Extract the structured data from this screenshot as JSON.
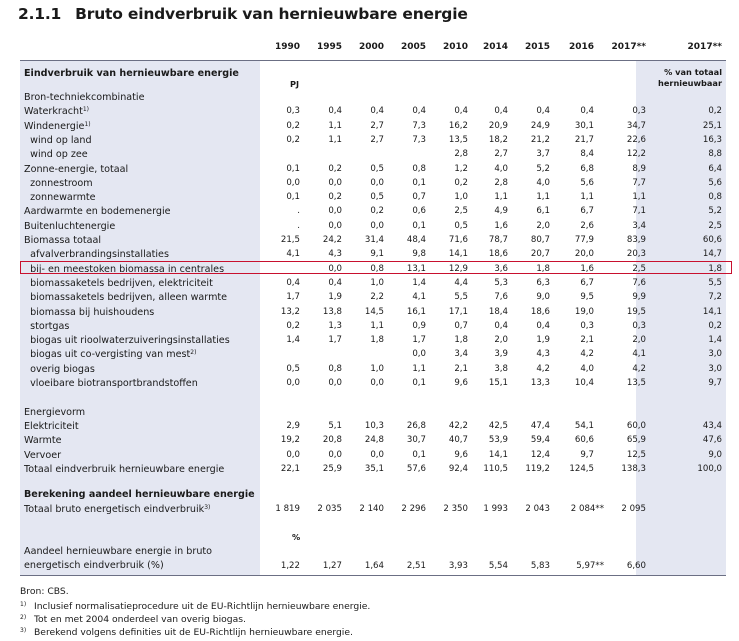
{
  "title": {
    "number": "2.1.1",
    "text": "Bruto eindverbruik van hernieuwbare energie"
  },
  "years": [
    "1990",
    "1995",
    "2000",
    "2005",
    "2010",
    "2014",
    "2015",
    "2016",
    "2017**",
    "2017**"
  ],
  "section1": {
    "heading": "Eindverbruik van hernieuwbare energie",
    "unit_pj": "PJ",
    "unit_pct": "% van totaal\nhernieuwbaar"
  },
  "rows": [
    {
      "label": "Bron-techniekcombinatie",
      "sup": "",
      "bold": false,
      "values": [
        "",
        "",
        "",
        "",
        "",
        "",
        "",
        "",
        "",
        ""
      ]
    },
    {
      "label": "Waterkracht",
      "sup": "1)",
      "bold": false,
      "values": [
        "0,3",
        "0,4",
        "0,4",
        "0,4",
        "0,4",
        "0,4",
        "0,4",
        "0,4",
        "0,3",
        "0,2"
      ]
    },
    {
      "label": "Windenergie",
      "sup": "1)",
      "bold": false,
      "values": [
        "0,2",
        "1,1",
        "2,7",
        "7,3",
        "16,2",
        "20,9",
        "24,9",
        "30,1",
        "34,7",
        "25,1"
      ]
    },
    {
      "label": "  wind op land",
      "sup": "",
      "bold": false,
      "values": [
        "0,2",
        "1,1",
        "2,7",
        "7,3",
        "13,5",
        "18,2",
        "21,2",
        "21,7",
        "22,6",
        "16,3"
      ]
    },
    {
      "label": "  wind op zee",
      "sup": "",
      "bold": false,
      "values": [
        "",
        "",
        "",
        "",
        "2,8",
        "2,7",
        "3,7",
        "8,4",
        "12,2",
        "8,8"
      ]
    },
    {
      "label": "Zonne-energie, totaal",
      "sup": "",
      "bold": false,
      "values": [
        "0,1",
        "0,2",
        "0,5",
        "0,8",
        "1,2",
        "4,0",
        "5,2",
        "6,8",
        "8,9",
        "6,4"
      ]
    },
    {
      "label": "  zonnestroom",
      "sup": "",
      "bold": false,
      "values": [
        "0,0",
        "0,0",
        "0,0",
        "0,1",
        "0,2",
        "2,8",
        "4,0",
        "5,6",
        "7,7",
        "5,6"
      ]
    },
    {
      "label": "  zonnewarmte",
      "sup": "",
      "bold": false,
      "values": [
        "0,1",
        "0,2",
        "0,5",
        "0,7",
        "1,0",
        "1,1",
        "1,1",
        "1,1",
        "1,1",
        "0,8"
      ]
    },
    {
      "label": "Aardwarmte en bodemenergie",
      "sup": "",
      "bold": false,
      "values": [
        ".",
        "0,0",
        "0,2",
        "0,6",
        "2,5",
        "4,9",
        "6,1",
        "6,7",
        "7,1",
        "5,2"
      ]
    },
    {
      "label": "Buitenluchtenergie",
      "sup": "",
      "bold": false,
      "values": [
        ".",
        "0,0",
        "0,0",
        "0,1",
        "0,5",
        "1,6",
        "2,0",
        "2,6",
        "3,4",
        "2,5"
      ]
    },
    {
      "label": "Biomassa totaal",
      "sup": "",
      "bold": false,
      "values": [
        "21,5",
        "24,2",
        "31,4",
        "48,4",
        "71,6",
        "78,7",
        "80,7",
        "77,9",
        "83,9",
        "60,6"
      ]
    },
    {
      "label": "  afvalverbrandingsinstallaties",
      "sup": "",
      "bold": false,
      "values": [
        "4,1",
        "4,3",
        "9,1",
        "9,8",
        "14,1",
        "18,6",
        "20,7",
        "20,0",
        "20,3",
        "14,7"
      ]
    },
    {
      "label": "  bij- en meestoken biomassa in centrales",
      "sup": "",
      "bold": false,
      "values": [
        "",
        "0,0",
        "0,8",
        "13,1",
        "12,9",
        "3,6",
        "1,8",
        "1,6",
        "2,5",
        "1,8"
      ]
    },
    {
      "label": "  biomassaketels bedrijven, elektriciteit",
      "sup": "",
      "bold": false,
      "values": [
        "0,4",
        "0,4",
        "1,0",
        "1,4",
        "4,4",
        "5,3",
        "6,3",
        "6,7",
        "7,6",
        "5,5"
      ]
    },
    {
      "label": "  biomassaketels bedrijven, alleen warmte",
      "sup": "",
      "bold": false,
      "values": [
        "1,7",
        "1,9",
        "2,2",
        "4,1",
        "5,5",
        "7,6",
        "9,0",
        "9,5",
        "9,9",
        "7,2"
      ]
    },
    {
      "label": "  biomassa bij huishoudens",
      "sup": "",
      "bold": false,
      "values": [
        "13,2",
        "13,8",
        "14,5",
        "16,1",
        "17,1",
        "18,4",
        "18,6",
        "19,0",
        "19,5",
        "14,1"
      ]
    },
    {
      "label": "  stortgas",
      "sup": "",
      "bold": false,
      "values": [
        "0,2",
        "1,3",
        "1,1",
        "0,9",
        "0,7",
        "0,4",
        "0,4",
        "0,3",
        "0,3",
        "0,2"
      ]
    },
    {
      "label": "  biogas uit rioolwaterzuiveringsinstallaties",
      "sup": "",
      "bold": false,
      "values": [
        "1,4",
        "1,7",
        "1,8",
        "1,7",
        "1,8",
        "2,0",
        "1,9",
        "2,1",
        "2,0",
        "1,4"
      ]
    },
    {
      "label": "  biogas uit co-vergisting van mest",
      "sup": "2)",
      "bold": false,
      "values": [
        "",
        "",
        "",
        "0,0",
        "3,4",
        "3,9",
        "4,3",
        "4,2",
        "4,1",
        "3,0"
      ]
    },
    {
      "label": "  overig biogas",
      "sup": "",
      "bold": false,
      "values": [
        "0,5",
        "0,8",
        "1,0",
        "1,1",
        "2,1",
        "3,8",
        "4,2",
        "4,0",
        "4,2",
        "3,0"
      ]
    },
    {
      "label": "  vloeibare biotransportbrandstoffen",
      "sup": "",
      "bold": false,
      "values": [
        "0,0",
        "0,0",
        "0,0",
        "0,1",
        "9,6",
        "15,1",
        "13,3",
        "10,4",
        "13,5",
        "9,7"
      ]
    },
    {
      "label": "",
      "sup": "",
      "bold": false,
      "values": [
        "",
        "",
        "",
        "",
        "",
        "",
        "",
        "",
        "",
        ""
      ]
    },
    {
      "label": "Energievorm",
      "sup": "",
      "bold": false,
      "values": [
        "",
        "",
        "",
        "",
        "",
        "",
        "",
        "",
        "",
        ""
      ]
    },
    {
      "label": "Elektriciteit",
      "sup": "",
      "bold": false,
      "values": [
        "2,9",
        "5,1",
        "10,3",
        "26,8",
        "42,2",
        "42,5",
        "47,4",
        "54,1",
        "60,0",
        "43,4"
      ]
    },
    {
      "label": "Warmte",
      "sup": "",
      "bold": false,
      "values": [
        "19,2",
        "20,8",
        "24,8",
        "30,7",
        "40,7",
        "53,9",
        "59,4",
        "60,6",
        "65,9",
        "47,6"
      ]
    },
    {
      "label": "Vervoer",
      "sup": "",
      "bold": false,
      "values": [
        "0,0",
        "0,0",
        "0,0",
        "0,1",
        "9,6",
        "14,1",
        "12,4",
        "9,7",
        "12,5",
        "9,0"
      ]
    },
    {
      "label": "Totaal eindverbruik hernieuwbare energie",
      "sup": "",
      "bold": false,
      "values": [
        "22,1",
        "25,9",
        "35,1",
        "57,6",
        "92,4",
        "110,5",
        "119,2",
        "124,5",
        "138,3",
        "100,0"
      ]
    }
  ],
  "section2": {
    "heading": "Berekening aandeel hernieuwbare energie",
    "row_label": "Totaal bruto energetisch eindverbruik",
    "row_sup": "3)",
    "row_values": [
      "1 819",
      "2 035",
      "2 140",
      "2 296",
      "2 350",
      "1 993",
      "2 043",
      "2 084**",
      "2 095"
    ]
  },
  "section3": {
    "unit": "%",
    "label_line1": "Aandeel hernieuwbare energie in bruto",
    "label_line2": "energetisch eindverbruik (%)",
    "values": [
      "1,22",
      "1,27",
      "1,64",
      "2,51",
      "3,93",
      "5,54",
      "5,83",
      "5,97**",
      "6,60"
    ]
  },
  "notes": {
    "source": "Bron: CBS.",
    "footnotes": [
      {
        "mark": "1)",
        "text": "Inclusief normalisatieprocedure uit de EU-Richtlijn hernieuwbare energie."
      },
      {
        "mark": "2)",
        "text": "Tot en met 2004 onderdeel van overig biogas."
      },
      {
        "mark": "3)",
        "text": "Berekend volgens definities uit de EU-Richtlijn hernieuwbare energie."
      }
    ]
  }
}
